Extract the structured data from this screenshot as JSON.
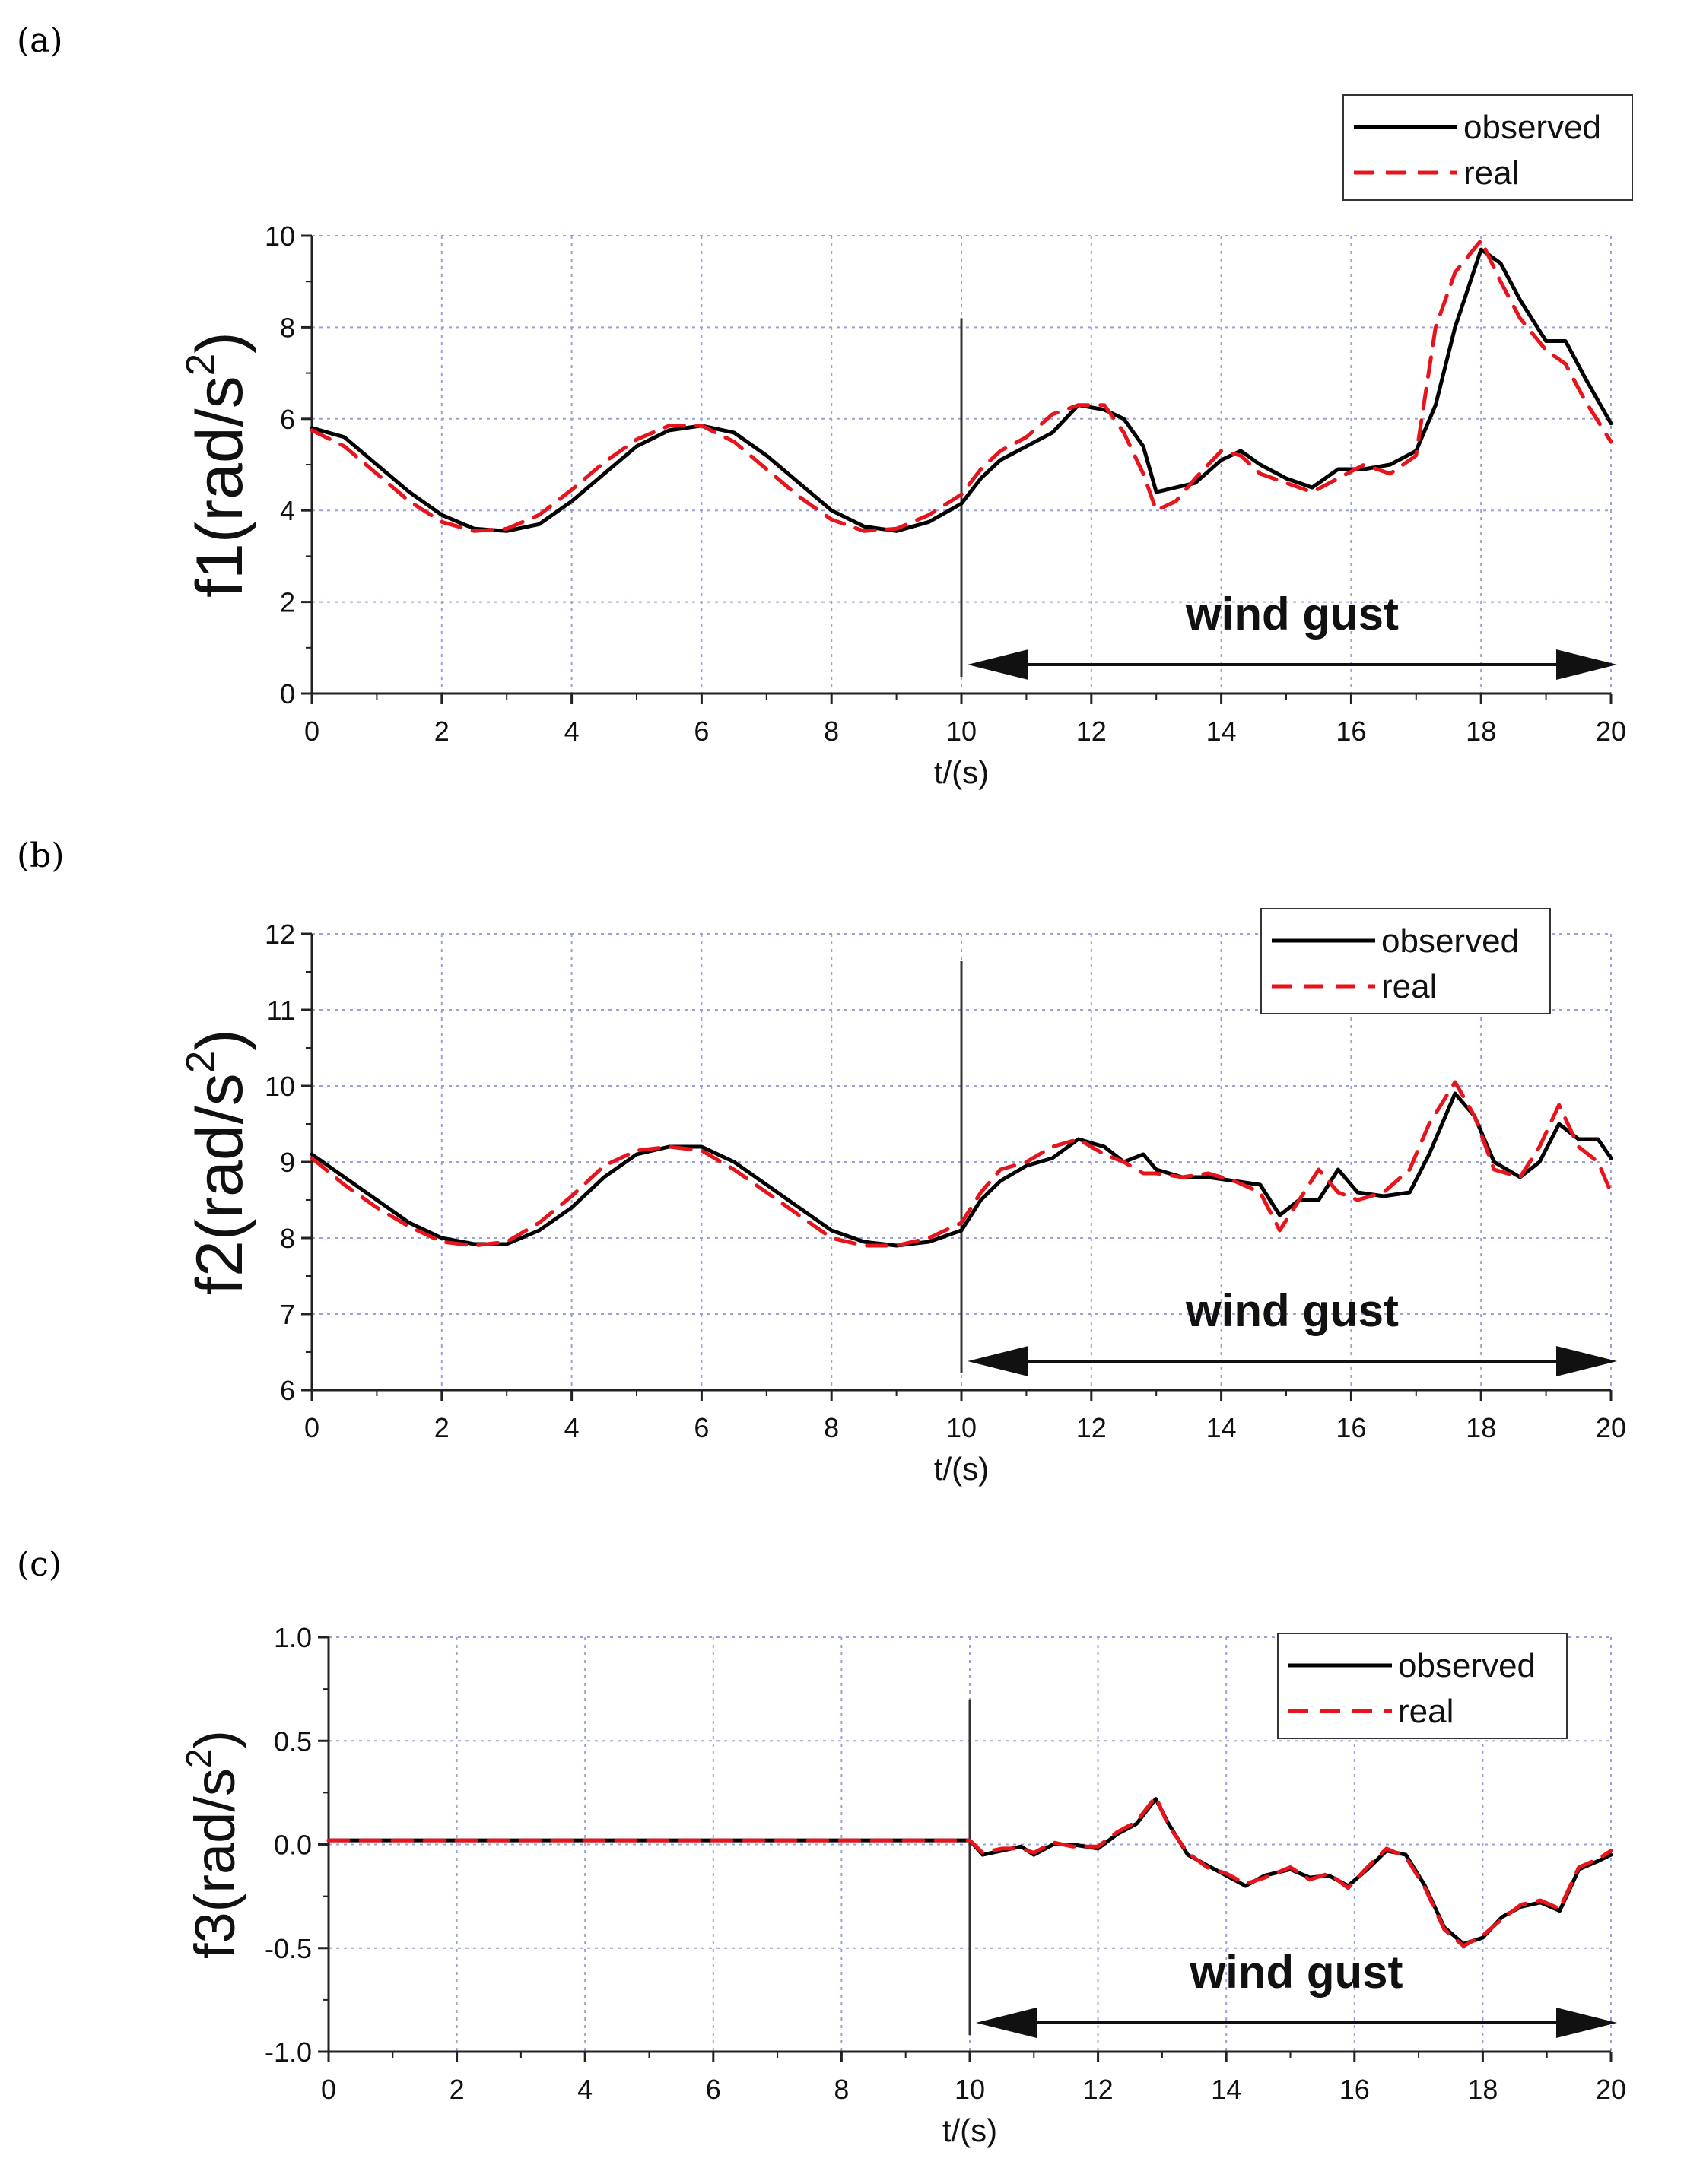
{
  "chart_data": [
    {
      "type": "line",
      "panel_label": "(a)",
      "ylabel": "f1(rad/s2)",
      "ylabel_base": "f1(rad/s",
      "ylabel_sup": "2",
      "ylabel_close": ")",
      "xlabel": "t/(s)",
      "xlim": [
        0,
        20
      ],
      "ylim": [
        0,
        10
      ],
      "xticks": [
        "0",
        "2",
        "4",
        "6",
        "8",
        "10",
        "12",
        "14",
        "16",
        "18",
        "20"
      ],
      "yticks": [
        "0",
        "2",
        "4",
        "6",
        "8",
        "10"
      ],
      "grid": true,
      "legend": "top-right",
      "annotation": "wind gust",
      "gust_start": 10,
      "gust_end": 20,
      "series": [
        {
          "name": "observed",
          "color": "#000000",
          "style": "solid",
          "x": [
            0,
            0.5,
            1,
            1.5,
            2,
            2.5,
            3,
            3.5,
            4,
            4.5,
            5,
            5.5,
            6,
            6.5,
            7,
            7.5,
            8,
            8.5,
            9,
            9.5,
            10,
            10.3,
            10.6,
            11,
            11.4,
            11.8,
            12.2,
            12.5,
            12.8,
            13,
            13.3,
            13.6,
            14,
            14.3,
            14.6,
            15,
            15.4,
            15.8,
            16.2,
            16.6,
            17,
            17.3,
            17.6,
            18,
            18.3,
            18.6,
            19,
            19.3,
            19.6,
            20
          ],
          "y": [
            5.8,
            5.6,
            5.0,
            4.4,
            3.9,
            3.6,
            3.55,
            3.7,
            4.2,
            4.8,
            5.4,
            5.75,
            5.85,
            5.7,
            5.2,
            4.6,
            4.0,
            3.65,
            3.55,
            3.75,
            4.15,
            4.7,
            5.1,
            5.4,
            5.7,
            6.3,
            6.2,
            6.0,
            5.4,
            4.4,
            4.5,
            4.6,
            5.1,
            5.3,
            5.0,
            4.7,
            4.5,
            4.9,
            4.9,
            5.0,
            5.3,
            6.3,
            8.0,
            9.7,
            9.4,
            8.6,
            7.7,
            7.7,
            6.9,
            5.9
          ]
        },
        {
          "name": "real",
          "color": "#e8141b",
          "style": "dashed",
          "x": [
            0,
            0.5,
            1,
            1.5,
            2,
            2.5,
            3,
            3.5,
            4,
            4.5,
            5,
            5.5,
            6,
            6.5,
            7,
            7.5,
            8,
            8.5,
            9,
            9.5,
            10,
            10.3,
            10.6,
            11,
            11.4,
            11.8,
            12.2,
            12.5,
            12.8,
            13,
            13.3,
            13.6,
            14,
            14.3,
            14.6,
            15,
            15.4,
            15.8,
            16.2,
            16.6,
            17,
            17.3,
            17.6,
            18,
            18.3,
            18.6,
            19,
            19.3,
            19.6,
            20
          ],
          "y": [
            5.75,
            5.4,
            4.8,
            4.2,
            3.75,
            3.55,
            3.6,
            3.9,
            4.45,
            5.05,
            5.55,
            5.85,
            5.85,
            5.5,
            4.9,
            4.3,
            3.8,
            3.55,
            3.6,
            3.9,
            4.35,
            4.9,
            5.3,
            5.6,
            6.1,
            6.3,
            6.3,
            5.7,
            4.8,
            4.0,
            4.2,
            4.7,
            5.3,
            5.2,
            4.8,
            4.6,
            4.4,
            4.7,
            5.0,
            4.8,
            5.2,
            8.0,
            9.2,
            9.9,
            9.0,
            8.2,
            7.5,
            7.2,
            6.4,
            5.5
          ]
        }
      ]
    },
    {
      "type": "line",
      "panel_label": "(b)",
      "ylabel": "f2(rad/s2)",
      "ylabel_base": "f2(rad/s",
      "ylabel_sup": "2",
      "ylabel_close": ")",
      "xlabel": "t/(s)",
      "xlim": [
        0,
        20
      ],
      "ylim": [
        6,
        12
      ],
      "xticks": [
        "0",
        "2",
        "4",
        "6",
        "8",
        "10",
        "12",
        "14",
        "16",
        "18",
        "20"
      ],
      "yticks": [
        "6",
        "7",
        "8",
        "9",
        "10",
        "11",
        "12"
      ],
      "grid": true,
      "legend": "top-right",
      "annotation": "wind gust",
      "gust_start": 10,
      "gust_end": 20,
      "series": [
        {
          "name": "observed",
          "color": "#000000",
          "style": "solid",
          "x": [
            0,
            0.5,
            1,
            1.5,
            2,
            2.5,
            3,
            3.5,
            4,
            4.5,
            5,
            5.5,
            6,
            6.5,
            7,
            7.5,
            8,
            8.5,
            9,
            9.5,
            10,
            10.3,
            10.6,
            11,
            11.4,
            11.8,
            12.2,
            12.5,
            12.8,
            13,
            13.4,
            13.8,
            14.2,
            14.6,
            14.9,
            15.2,
            15.5,
            15.8,
            16.1,
            16.5,
            16.9,
            17.2,
            17.6,
            17.9,
            18.2,
            18.6,
            18.9,
            19.2,
            19.5,
            19.8,
            20
          ],
          "y": [
            9.1,
            8.8,
            8.5,
            8.2,
            8.0,
            7.92,
            7.92,
            8.1,
            8.4,
            8.8,
            9.1,
            9.2,
            9.2,
            9.0,
            8.7,
            8.4,
            8.1,
            7.95,
            7.9,
            7.95,
            8.1,
            8.5,
            8.75,
            8.95,
            9.05,
            9.3,
            9.2,
            9.0,
            9.1,
            8.9,
            8.8,
            8.8,
            8.75,
            8.7,
            8.3,
            8.5,
            8.5,
            8.9,
            8.6,
            8.55,
            8.6,
            9.1,
            9.9,
            9.6,
            9.0,
            8.8,
            9.0,
            9.5,
            9.3,
            9.3,
            9.05
          ]
        },
        {
          "name": "real",
          "color": "#e8141b",
          "style": "dashed",
          "x": [
            0,
            0.5,
            1,
            1.5,
            2,
            2.5,
            3,
            3.5,
            4,
            4.5,
            5,
            5.5,
            6,
            6.5,
            7,
            7.5,
            8,
            8.5,
            9,
            9.5,
            10,
            10.3,
            10.6,
            11,
            11.4,
            11.8,
            12.2,
            12.5,
            12.8,
            13,
            13.4,
            13.8,
            14.2,
            14.6,
            14.9,
            15.2,
            15.5,
            15.8,
            16.1,
            16.5,
            16.9,
            17.2,
            17.6,
            17.9,
            18.2,
            18.6,
            18.9,
            19.2,
            19.5,
            19.8,
            20
          ],
          "y": [
            9.05,
            8.7,
            8.4,
            8.15,
            7.95,
            7.9,
            7.95,
            8.2,
            8.55,
            8.95,
            9.15,
            9.2,
            9.15,
            8.9,
            8.6,
            8.3,
            8.0,
            7.9,
            7.9,
            8.0,
            8.2,
            8.6,
            8.9,
            9.0,
            9.2,
            9.3,
            9.1,
            9.0,
            8.85,
            8.85,
            8.8,
            8.85,
            8.75,
            8.6,
            8.1,
            8.5,
            8.9,
            8.6,
            8.5,
            8.6,
            8.9,
            9.5,
            10.05,
            9.6,
            8.9,
            8.8,
            9.2,
            9.75,
            9.2,
            9.0,
            8.6
          ]
        }
      ]
    },
    {
      "type": "line",
      "panel_label": "(c)",
      "ylabel": "f3(rad/s2)",
      "ylabel_base": "f3(rad/s",
      "ylabel_sup": "2",
      "ylabel_close": ")",
      "xlabel": "t/(s)",
      "xlim": [
        0,
        20
      ],
      "ylim": [
        -1.0,
        1.0
      ],
      "xticks": [
        "0",
        "2",
        "4",
        "6",
        "8",
        "10",
        "12",
        "14",
        "16",
        "18",
        "20"
      ],
      "yticks": [
        "-1.0",
        "-0.5",
        "0.0",
        "0.5",
        "1.0"
      ],
      "grid": true,
      "legend": "top-right",
      "annotation": "wind gust",
      "gust_start": 10,
      "gust_end": 20,
      "series": [
        {
          "name": "observed",
          "color": "#000000",
          "style": "solid",
          "x": [
            0,
            10,
            10.2,
            10.5,
            10.8,
            11,
            11.3,
            11.6,
            12,
            12.3,
            12.6,
            12.9,
            13.1,
            13.4,
            13.7,
            14,
            14.3,
            14.6,
            15,
            15.3,
            15.6,
            15.9,
            16.2,
            16.5,
            16.8,
            17.1,
            17.4,
            17.7,
            18,
            18.3,
            18.6,
            18.9,
            19.2,
            19.5,
            19.8,
            20
          ],
          "y": [
            0.02,
            0.02,
            -0.05,
            -0.03,
            -0.01,
            -0.05,
            0.0,
            0.0,
            -0.02,
            0.05,
            0.1,
            0.22,
            0.1,
            -0.05,
            -0.1,
            -0.15,
            -0.2,
            -0.15,
            -0.12,
            -0.16,
            -0.15,
            -0.2,
            -0.12,
            -0.03,
            -0.05,
            -0.2,
            -0.4,
            -0.48,
            -0.45,
            -0.35,
            -0.3,
            -0.28,
            -0.32,
            -0.12,
            -0.08,
            -0.05
          ]
        },
        {
          "name": "real",
          "color": "#e8141b",
          "style": "dashed",
          "x": [
            0,
            10,
            10.2,
            10.5,
            10.8,
            11,
            11.3,
            11.6,
            12,
            12.3,
            12.6,
            12.9,
            13.1,
            13.4,
            13.7,
            14,
            14.3,
            14.6,
            15,
            15.3,
            15.6,
            15.9,
            16.2,
            16.5,
            16.8,
            17.1,
            17.4,
            17.7,
            18,
            18.3,
            18.6,
            18.9,
            19.2,
            19.5,
            19.8,
            20
          ],
          "y": [
            0.02,
            0.02,
            -0.04,
            -0.02,
            -0.02,
            -0.04,
            0.01,
            -0.01,
            -0.01,
            0.06,
            0.11,
            0.23,
            0.09,
            -0.04,
            -0.11,
            -0.14,
            -0.19,
            -0.16,
            -0.11,
            -0.17,
            -0.14,
            -0.21,
            -0.11,
            -0.02,
            -0.06,
            -0.21,
            -0.41,
            -0.49,
            -0.44,
            -0.36,
            -0.29,
            -0.27,
            -0.31,
            -0.11,
            -0.07,
            -0.03
          ]
        }
      ]
    }
  ]
}
